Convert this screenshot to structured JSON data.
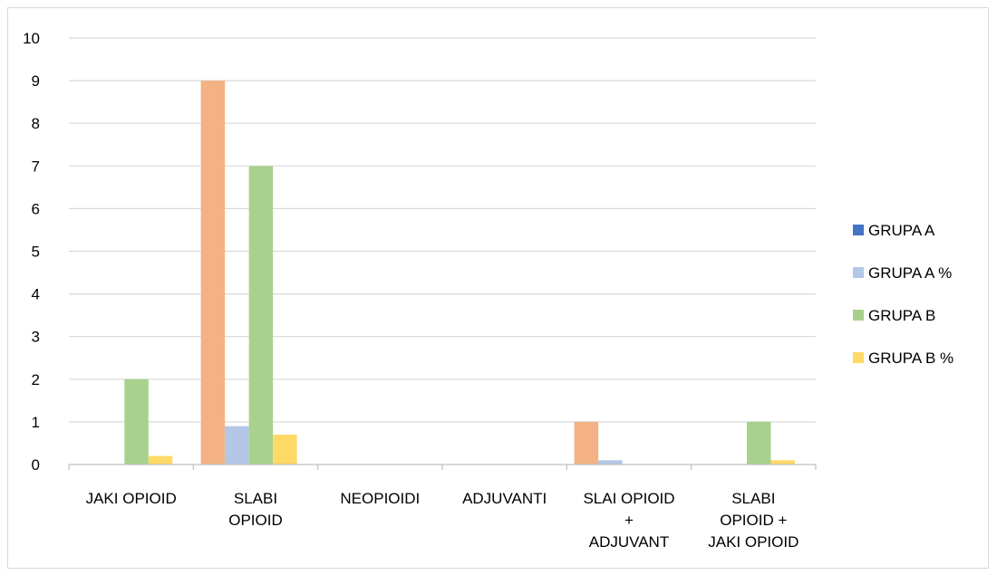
{
  "chart_data": {
    "type": "bar",
    "title": "",
    "xlabel": "",
    "ylabel": "",
    "ylim": [
      0,
      10
    ],
    "yticks": [
      0,
      1,
      2,
      3,
      4,
      5,
      6,
      7,
      8,
      9,
      10
    ],
    "grid": true,
    "legend_position": "right",
    "categories": [
      [
        "JAKI OPIOID"
      ],
      [
        "SLABI",
        "OPIOID"
      ],
      [
        "NEOPIOIDI"
      ],
      [
        "ADJUVANTI"
      ],
      [
        "SLAI OPIOID",
        "+",
        "ADJUVANT"
      ],
      [
        "SLABI",
        "OPIOID +",
        "JAKI OPIOID"
      ]
    ],
    "bar_series": [
      {
        "color": "#f4b183",
        "values": [
          0,
          9,
          0,
          0,
          1,
          0
        ]
      },
      {
        "color": "#b4c7e7",
        "values": [
          0,
          0.9,
          0,
          0,
          0.1,
          0
        ]
      },
      {
        "color": "#a9d18e",
        "values": [
          2,
          7,
          0,
          0,
          0,
          1
        ]
      },
      {
        "color": "#ffd966",
        "values": [
          0.2,
          0.7,
          0,
          0,
          0,
          0.1
        ]
      }
    ],
    "legend": [
      {
        "name": "GRUPA A",
        "color": "#4472c4"
      },
      {
        "name": "GRUPA A %",
        "color": "#b4c7e7"
      },
      {
        "name": "GRUPA B",
        "color": "#a9d18e"
      },
      {
        "name": "GRUPA B %",
        "color": "#ffd966"
      }
    ]
  }
}
